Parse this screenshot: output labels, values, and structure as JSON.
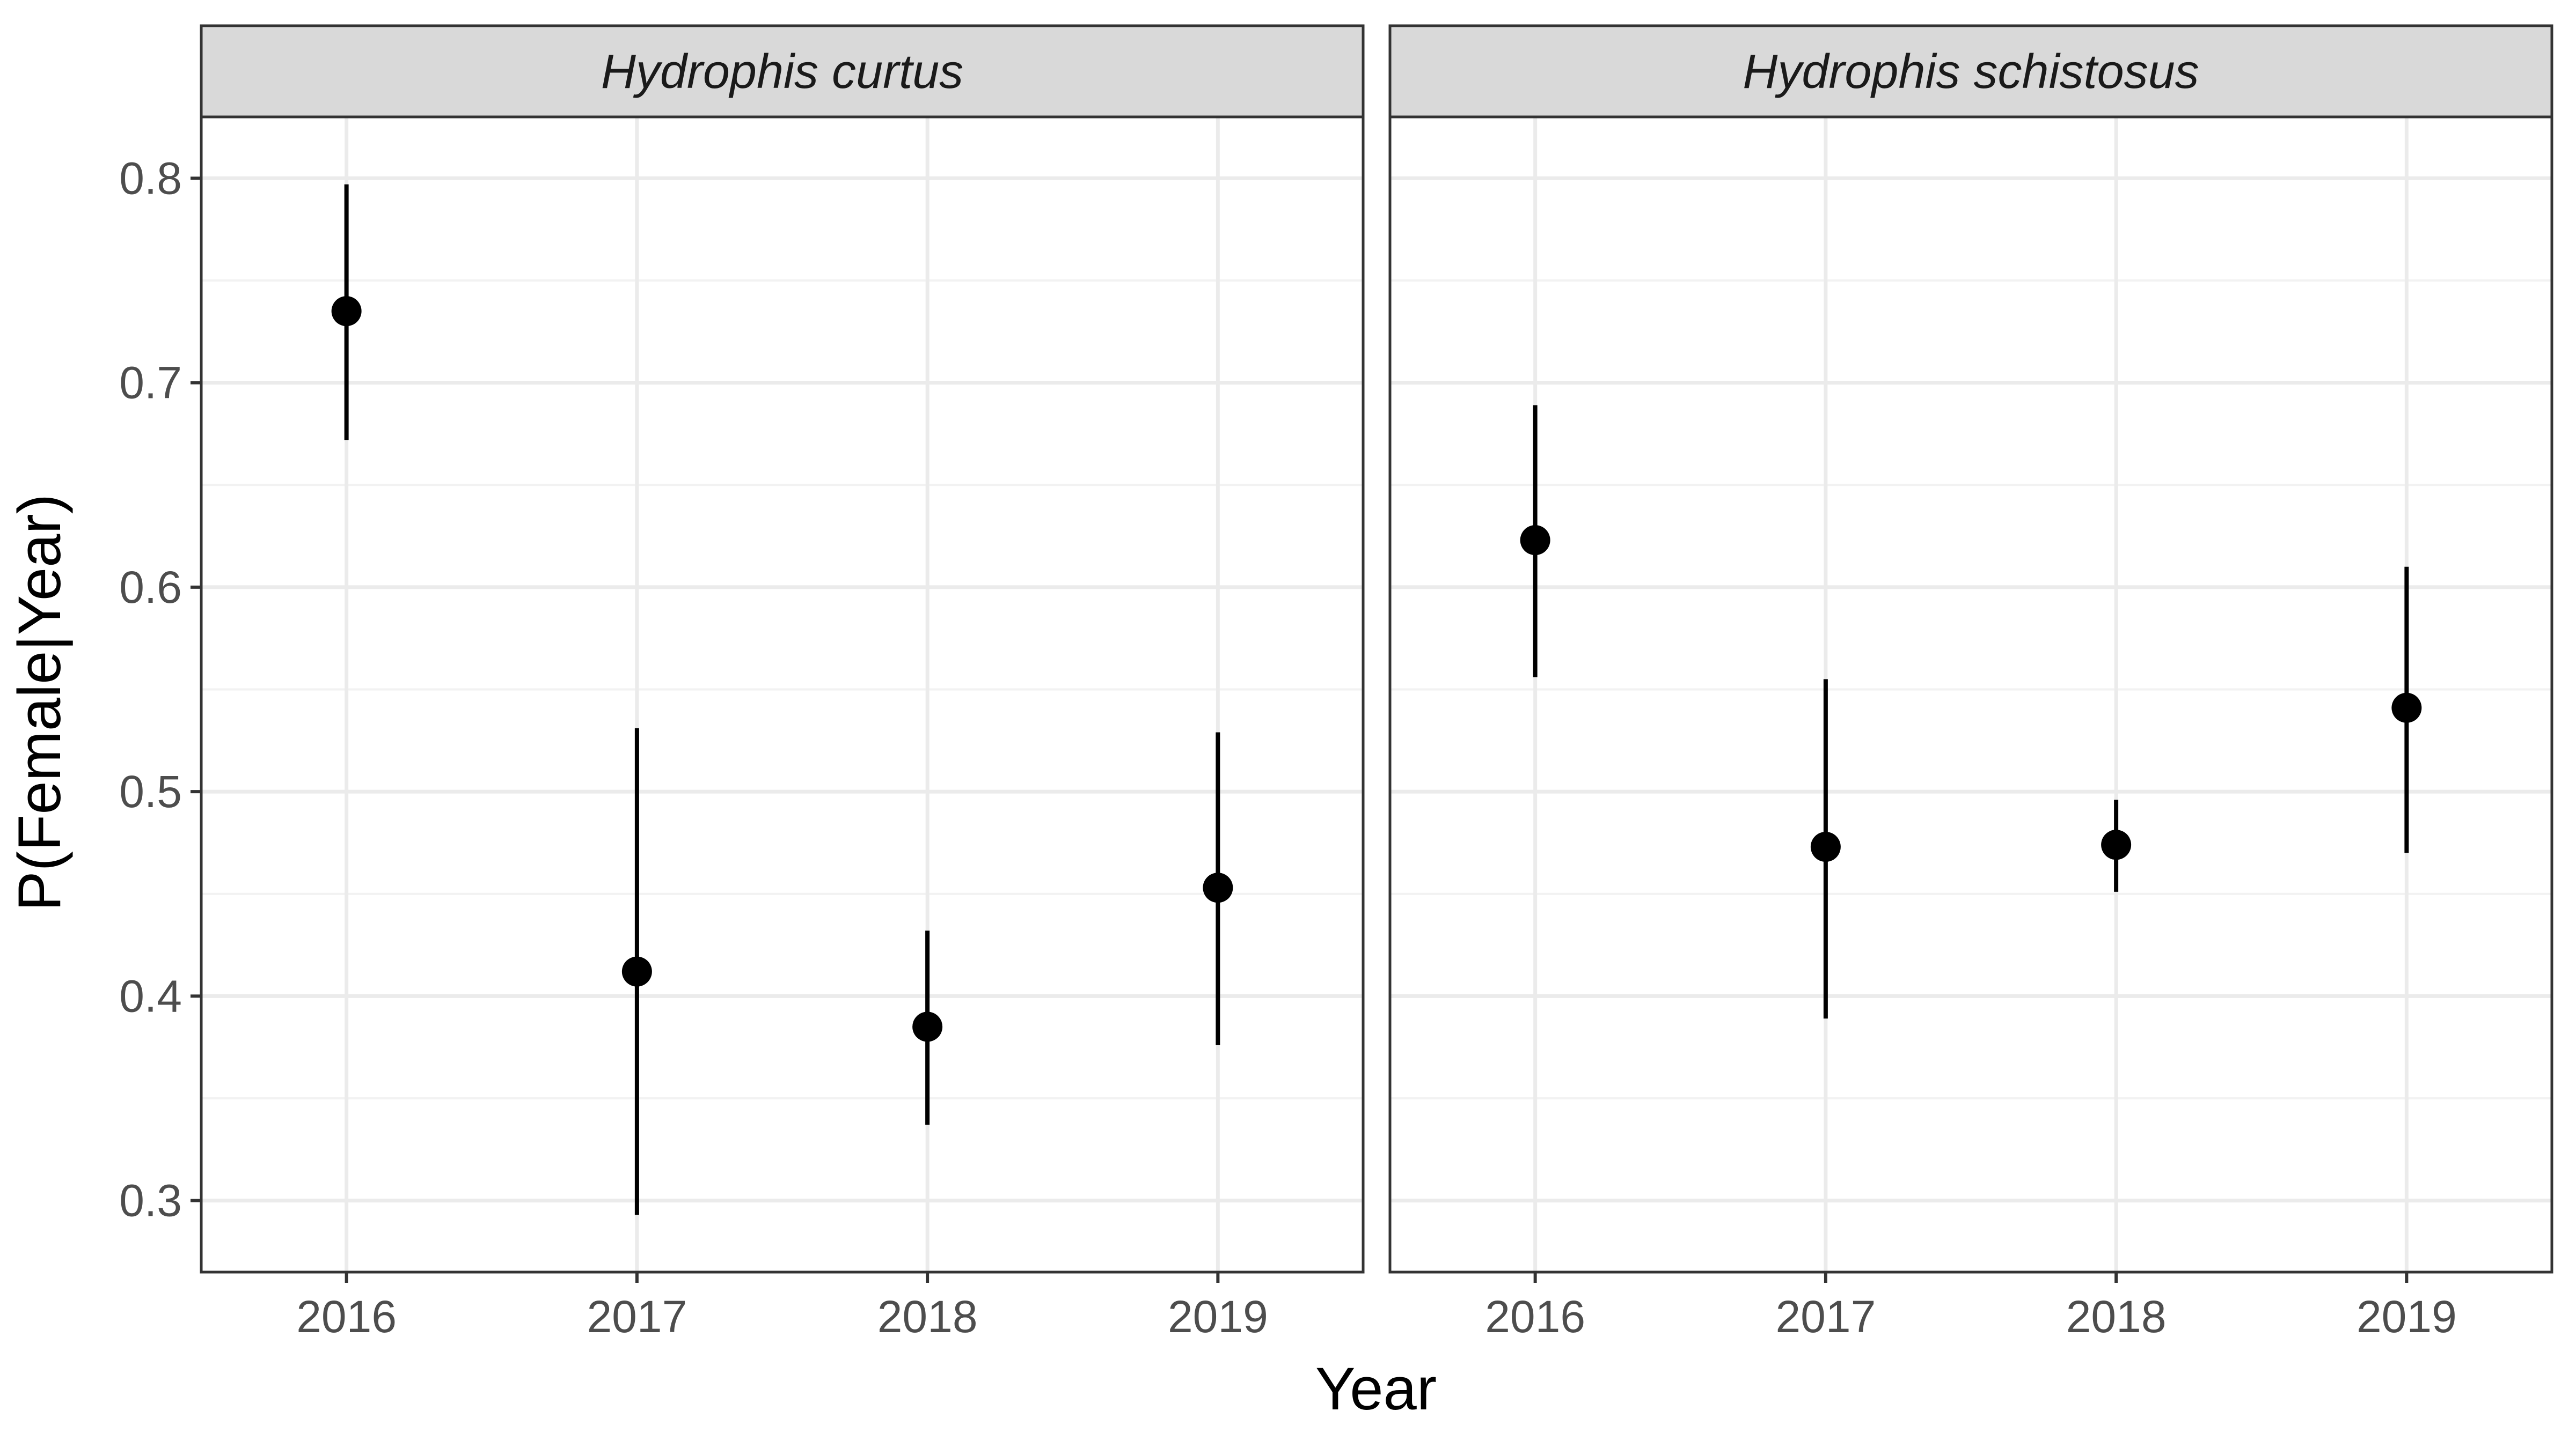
{
  "chart_data": {
    "type": "scatter",
    "style": "faceted point-range (estimate with interval)",
    "xlabel": "Year",
    "ylabel": "P(Female|Year)",
    "categories": [
      "2016",
      "2017",
      "2018",
      "2019"
    ],
    "ylim": [
      0.265,
      0.83
    ],
    "y_ticks": [
      "0.3",
      "0.4",
      "0.5",
      "0.6",
      "0.7",
      "0.8"
    ],
    "grid": true,
    "colors": {
      "point": "#000000",
      "panel_border": "#333333",
      "strip_fill": "#d9d9d9",
      "grid_major": "#ebebeb",
      "grid_minor": "#f2f2f2"
    },
    "panels": [
      {
        "title": "Hydrophis curtus",
        "points": [
          {
            "x": "2016",
            "y": 0.735,
            "lower": 0.672,
            "upper": 0.797
          },
          {
            "x": "2017",
            "y": 0.412,
            "lower": 0.293,
            "upper": 0.531
          },
          {
            "x": "2018",
            "y": 0.385,
            "lower": 0.337,
            "upper": 0.432
          },
          {
            "x": "2019",
            "y": 0.453,
            "lower": 0.376,
            "upper": 0.529
          }
        ]
      },
      {
        "title": "Hydrophis schistosus",
        "points": [
          {
            "x": "2016",
            "y": 0.623,
            "lower": 0.556,
            "upper": 0.689
          },
          {
            "x": "2017",
            "y": 0.473,
            "lower": 0.389,
            "upper": 0.555
          },
          {
            "x": "2018",
            "y": 0.474,
            "lower": 0.451,
            "upper": 0.496
          },
          {
            "x": "2019",
            "y": 0.541,
            "lower": 0.47,
            "upper": 0.61
          }
        ]
      }
    ]
  }
}
